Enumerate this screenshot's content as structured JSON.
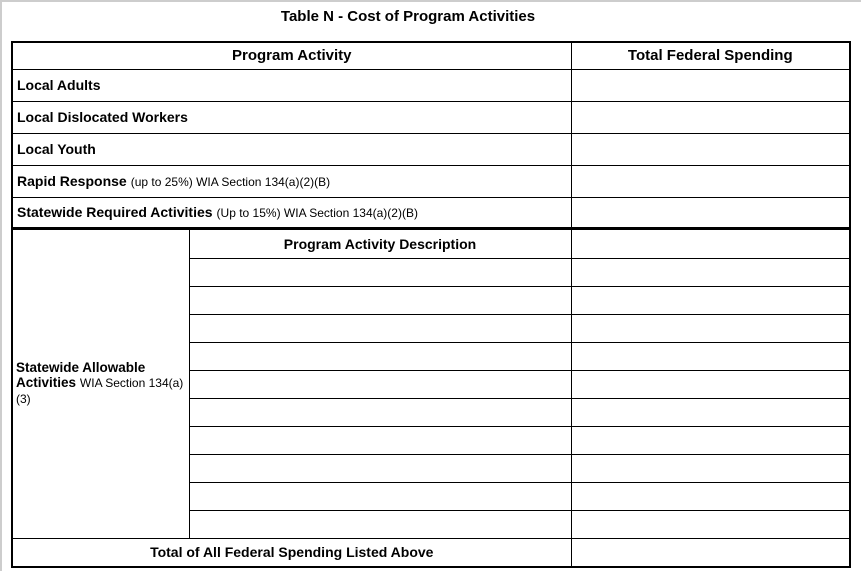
{
  "page": {
    "title": "Table N - Cost of Program Activities"
  },
  "table": {
    "headers": {
      "program_activity": "Program Activity",
      "total_federal_spending": "Total Federal Spending"
    },
    "rows": [
      {
        "label": "Local Adults",
        "note": "",
        "value": ""
      },
      {
        "label": "Local Dislocated Workers",
        "note": "",
        "value": ""
      },
      {
        "label": "Local Youth",
        "note": "",
        "value": ""
      },
      {
        "label": "Rapid Response",
        "note": "(up to 25%) WIA Section 134(a)(2)(B)",
        "value": ""
      },
      {
        "label": "Statewide Required Activities",
        "note": "(Up to 15%) WIA Section 134(a)(2)(B)",
        "value": ""
      }
    ],
    "statewide_allowable": {
      "label": "Statewide Allowable Activities",
      "note": "WIA Section 134(a)(3)",
      "description_header": "Program Activity Description",
      "empty_description_rows": 10,
      "header_row_value": ""
    },
    "footer": {
      "total_label": "Total of All Federal Spending Listed Above",
      "total_value": ""
    }
  },
  "colors": {
    "border": "#000000",
    "background": "#ffffff",
    "page_edge": "#cdcdcd"
  }
}
